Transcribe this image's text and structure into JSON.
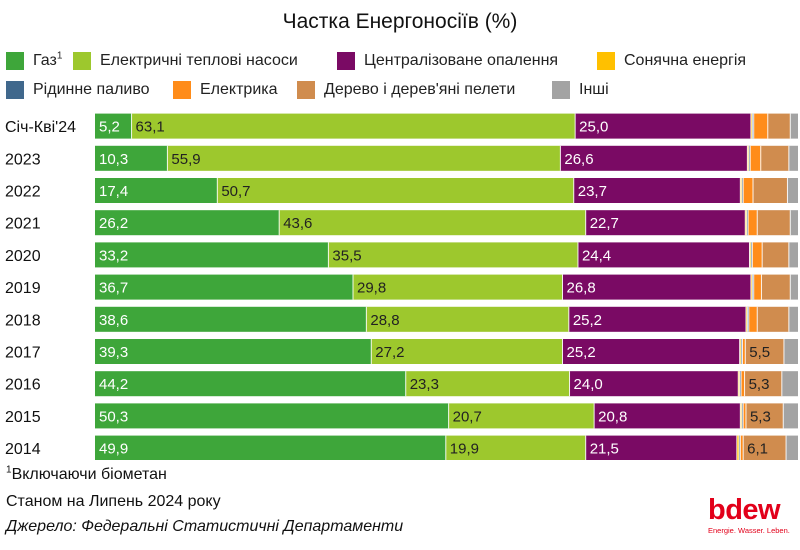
{
  "chart_data": {
    "type": "bar",
    "orientation": "horizontal",
    "stacked": true,
    "title": "Частка Енергоносіїв (%)",
    "xlim": [
      0,
      100
    ],
    "grid": false,
    "legend_position": "top",
    "categories": [
      "Січ-Кві'24",
      "2023",
      "2022",
      "2021",
      "2020",
      "2019",
      "2018",
      "2017",
      "2016",
      "2015",
      "2014"
    ],
    "series": [
      {
        "name": "Газ",
        "name_sup": "1",
        "color": "#3ea63a",
        "label_color": "#ffffff",
        "values": [
          5.2,
          10.3,
          17.4,
          26.2,
          33.2,
          36.7,
          38.6,
          39.3,
          44.2,
          50.3,
          49.9
        ],
        "labels": [
          "5,2",
          "10,3",
          "17,4",
          "26,2",
          "33,2",
          "36,7",
          "38,6",
          "39,3",
          "44,2",
          "50,3",
          "49,9"
        ]
      },
      {
        "name": "Електричні теплові насоси",
        "color": "#9dc82d",
        "label_color": "#222222",
        "values": [
          63.1,
          55.9,
          50.7,
          43.6,
          35.5,
          29.8,
          28.8,
          27.2,
          23.3,
          20.7,
          19.9
        ],
        "labels": [
          "63,1",
          "55,9",
          "50,7",
          "43,6",
          "35,5",
          "29,8",
          "28,8",
          "27,2",
          "23,3",
          "20,7",
          "19,9"
        ]
      },
      {
        "name": "Централізоване опалення",
        "color": "#7a0a64",
        "label_color": "#ffffff",
        "values": [
          25.0,
          26.6,
          23.7,
          22.7,
          24.4,
          26.8,
          25.2,
          25.2,
          24.0,
          20.8,
          21.5
        ],
        "labels": [
          "25,0",
          "26,6",
          "23,7",
          "22,7",
          "24,4",
          "26,8",
          "25,2",
          "25,2",
          "24,0",
          "20,8",
          "21,5"
        ]
      },
      {
        "name": "Сонячна енергія",
        "color": "#ffc000",
        "label_color": "#222222",
        "values": [
          0.2,
          0.2,
          0.2,
          0.2,
          0.2,
          0.2,
          0.2,
          0.2,
          0.2,
          0.2,
          0.3
        ],
        "labels": [
          "",
          "",
          "",
          "",
          "",
          "",
          "",
          "",
          "",
          "",
          ""
        ]
      },
      {
        "name": "Рідинне паливо",
        "color": "#40688c",
        "label_color": "#ffffff",
        "values": [
          0.2,
          0.2,
          0.2,
          0.2,
          0.2,
          0.2,
          0.2,
          0.2,
          0.2,
          0.2,
          0.2
        ],
        "labels": [
          "",
          "",
          "",
          "",
          "",
          "",
          "",
          "",
          "",
          "",
          ""
        ]
      },
      {
        "name": "Електрика",
        "color": "#ff8c1a",
        "label_color": "#222222",
        "values": [
          2.0,
          1.5,
          1.4,
          1.3,
          1.4,
          1.1,
          1.2,
          0.4,
          0.5,
          0.4,
          0.4
        ],
        "labels": [
          "",
          "",
          "",
          "",
          "",
          "",
          "",
          "",
          "",
          "",
          ""
        ]
      },
      {
        "name": "Дерево і дерев'яні пелети",
        "color": "#d08c4e",
        "label_color": "#222222",
        "values": [
          3.2,
          4.0,
          4.9,
          4.7,
          3.8,
          4.1,
          4.5,
          5.5,
          5.3,
          5.3,
          6.1
        ],
        "labels": [
          "",
          "",
          "",
          "",
          "",
          "",
          "",
          "5,5",
          "5,3",
          "5,3",
          "6,1"
        ]
      },
      {
        "name": "Інші",
        "color": "#a3a3a3",
        "label_color": "#222222",
        "values": [
          1.1,
          1.3,
          1.5,
          1.1,
          1.3,
          1.1,
          1.3,
          2.0,
          2.3,
          2.1,
          1.7
        ],
        "labels": [
          "",
          "",
          "",
          "",
          "",
          "",
          "",
          "",
          "",
          "",
          ""
        ]
      }
    ]
  },
  "notes": {
    "footnote_sup": "1",
    "footnote": "Включаючи біометан",
    "status": "Станом на Липень 2024 року",
    "source": "Джерело: Федеральні Статистичні Департаменти"
  },
  "logo": {
    "wordmark": "bdew",
    "tagline": "Energie. Wasser. Leben."
  }
}
